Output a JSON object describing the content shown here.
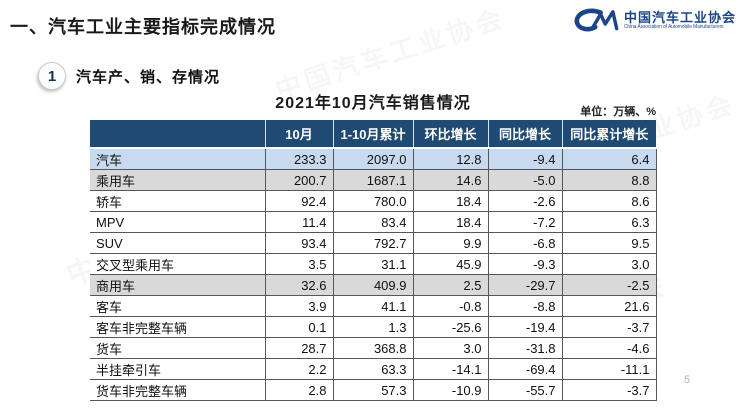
{
  "page": {
    "title": "一、汽车工业主要指标完成情况",
    "page_number": "5"
  },
  "logo": {
    "mark": "CM-swoosh",
    "name_cn": "中国汽车工业协会",
    "name_en": "China Association of Automobile Manufacturers"
  },
  "section": {
    "index": "1",
    "title": "汽车产、销、存情况"
  },
  "watermark": {
    "text": "中国汽车工业协会"
  },
  "table": {
    "title": "2021年10月汽车销售情况",
    "unit_note": "单位：万辆、%",
    "columns": [
      "",
      "10月",
      "1-10月累计",
      "环比增长",
      "同比增长",
      "同比累计增长"
    ],
    "rows": [
      {
        "label": "汽车",
        "indent": 0,
        "bg": "blue",
        "values": [
          "233.3",
          "2097.0",
          "12.8",
          "-9.4",
          "6.4"
        ]
      },
      {
        "label": "乘用车",
        "indent": 1,
        "bg": "gray",
        "values": [
          "200.7",
          "1687.1",
          "14.6",
          "-5.0",
          "8.8"
        ]
      },
      {
        "label": "轿车",
        "indent": 2,
        "bg": "white",
        "values": [
          "92.4",
          "780.0",
          "18.4",
          "-2.6",
          "8.6"
        ]
      },
      {
        "label": "MPV",
        "indent": 2,
        "bg": "white",
        "values": [
          "11.4",
          "83.4",
          "18.4",
          "-7.2",
          "6.3"
        ]
      },
      {
        "label": "SUV",
        "indent": 2,
        "bg": "white",
        "values": [
          "93.4",
          "792.7",
          "9.9",
          "-6.8",
          "9.5"
        ]
      },
      {
        "label": "交叉型乘用车",
        "indent": 2,
        "bg": "white",
        "values": [
          "3.5",
          "31.1",
          "45.9",
          "-9.3",
          "3.0"
        ]
      },
      {
        "label": "商用车",
        "indent": 1,
        "bg": "gray",
        "values": [
          "32.6",
          "409.9",
          "2.5",
          "-29.7",
          "-2.5"
        ]
      },
      {
        "label": "客车",
        "indent": 2,
        "bg": "white",
        "values": [
          "3.9",
          "41.1",
          "-0.8",
          "-8.8",
          "21.6"
        ]
      },
      {
        "label": "客车非完整车辆",
        "indent": 3,
        "bg": "white",
        "values": [
          "0.1",
          "1.3",
          "-25.6",
          "-19.4",
          "-3.7"
        ]
      },
      {
        "label": "货车",
        "indent": 2,
        "bg": "white",
        "values": [
          "28.7",
          "368.8",
          "3.0",
          "-31.8",
          "-4.6"
        ]
      },
      {
        "label": "半挂牵引车",
        "indent": 3,
        "bg": "white",
        "values": [
          "2.2",
          "63.3",
          "-14.1",
          "-69.4",
          "-11.1"
        ]
      },
      {
        "label": "货车非完整车辆",
        "indent": 3,
        "bg": "white",
        "values": [
          "2.8",
          "57.3",
          "-10.9",
          "-55.7",
          "-3.7"
        ]
      }
    ]
  },
  "colors": {
    "header_bg": "#1f4a73",
    "row_highlight_blue": "#c7daef",
    "row_highlight_gray": "#d9d9d9",
    "logo_blue": "#1c4587",
    "border": "#565656"
  }
}
